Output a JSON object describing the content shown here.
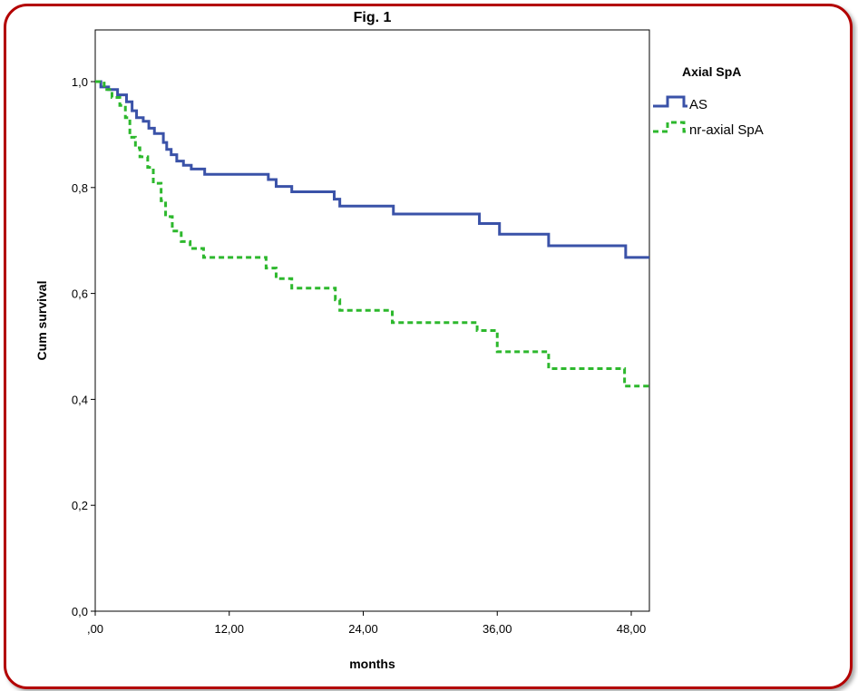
{
  "chart_data": {
    "type": "line",
    "subtype": "kaplan-meier step",
    "title": "Fig. 1",
    "xlabel": "months",
    "ylabel": "Cum survival",
    "xlim": [
      0,
      51
    ],
    "ylim": [
      0,
      1.05
    ],
    "x_ticks": [
      0,
      12,
      24,
      36,
      48
    ],
    "x_tick_labels": [
      ",00",
      "12,00",
      "24,00",
      "36,00",
      "48,00"
    ],
    "y_ticks": [
      0,
      0.2,
      0.4,
      0.6,
      0.8,
      1.0
    ],
    "y_tick_labels": [
      "0,0",
      "0,2",
      "0,4",
      "0,6",
      "0,8",
      "1,0"
    ],
    "grid": false,
    "legend": {
      "title": "Axial SpA",
      "placement": "right"
    },
    "series": [
      {
        "name": "AS",
        "color": "#3a52a8",
        "style": "solid",
        "steps": [
          [
            0,
            1.0
          ],
          [
            0.5,
            0.99
          ],
          [
            1.2,
            0.985
          ],
          [
            2.0,
            0.975
          ],
          [
            2.8,
            0.962
          ],
          [
            3.3,
            0.945
          ],
          [
            3.7,
            0.932
          ],
          [
            4.3,
            0.925
          ],
          [
            4.8,
            0.912
          ],
          [
            5.3,
            0.902
          ],
          [
            6.1,
            0.885
          ],
          [
            6.4,
            0.872
          ],
          [
            6.8,
            0.862
          ],
          [
            7.3,
            0.85
          ],
          [
            7.9,
            0.842
          ],
          [
            8.6,
            0.835
          ],
          [
            9.8,
            0.825
          ],
          [
            15.5,
            0.815
          ],
          [
            16.2,
            0.802
          ],
          [
            17.6,
            0.792
          ],
          [
            21.4,
            0.778
          ],
          [
            21.9,
            0.765
          ],
          [
            26.7,
            0.75
          ],
          [
            34.4,
            0.732
          ],
          [
            36.2,
            0.712
          ],
          [
            40.6,
            0.69
          ],
          [
            47.5,
            0.668
          ],
          [
            51,
            0.668
          ]
        ]
      },
      {
        "name": "nr-axial SpA",
        "color": "#2db82d",
        "style": "dashed",
        "steps": [
          [
            0,
            1.0
          ],
          [
            0.8,
            0.985
          ],
          [
            1.5,
            0.97
          ],
          [
            2.2,
            0.955
          ],
          [
            2.7,
            0.932
          ],
          [
            3.1,
            0.895
          ],
          [
            3.6,
            0.875
          ],
          [
            4.0,
            0.858
          ],
          [
            4.7,
            0.838
          ],
          [
            5.2,
            0.808
          ],
          [
            5.9,
            0.775
          ],
          [
            6.3,
            0.745
          ],
          [
            6.9,
            0.718
          ],
          [
            7.7,
            0.698
          ],
          [
            8.5,
            0.685
          ],
          [
            9.7,
            0.668
          ],
          [
            15.3,
            0.648
          ],
          [
            16.2,
            0.628
          ],
          [
            17.6,
            0.61
          ],
          [
            21.5,
            0.588
          ],
          [
            21.9,
            0.568
          ],
          [
            26.6,
            0.545
          ],
          [
            34.2,
            0.53
          ],
          [
            36.0,
            0.49
          ],
          [
            40.6,
            0.458
          ],
          [
            47.4,
            0.425
          ],
          [
            51,
            0.425
          ]
        ]
      }
    ]
  }
}
